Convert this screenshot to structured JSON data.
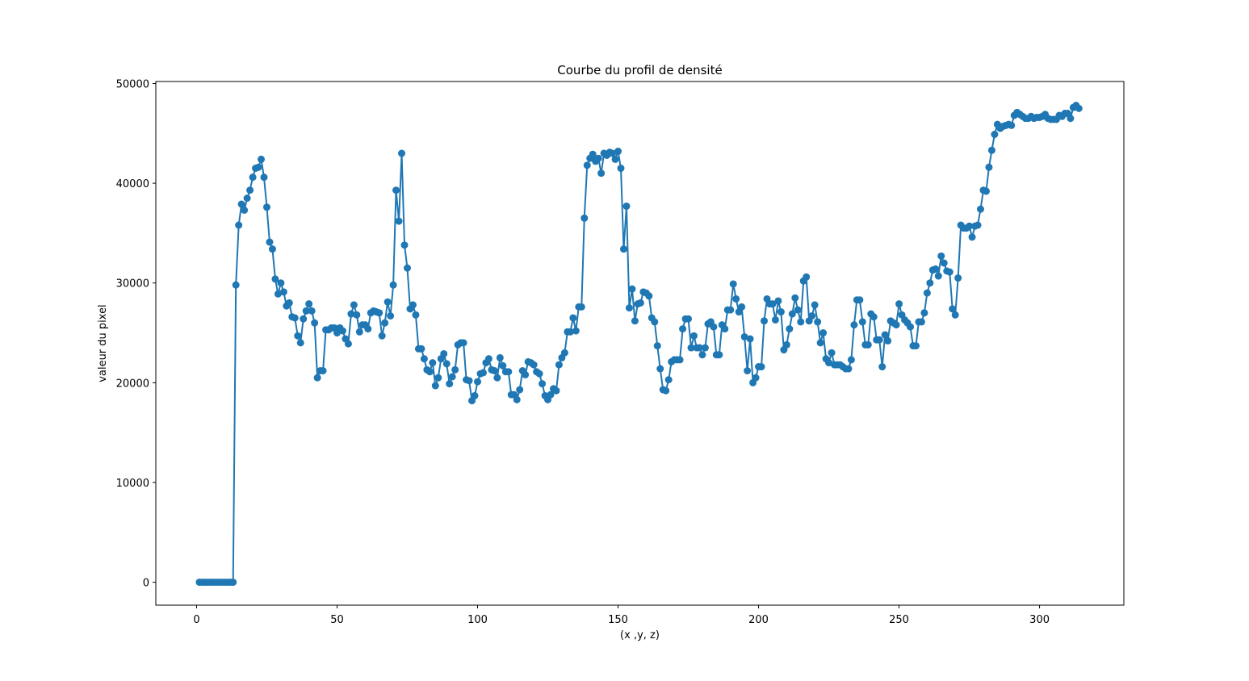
{
  "chart_data": {
    "type": "line",
    "title": "Courbe du profil de densité",
    "xlabel": "(x ,y, z)",
    "ylabel": "valeur du pixel",
    "xlim": [
      -14.5,
      330
    ],
    "ylim": [
      -2300,
      50200
    ],
    "xticks": [
      0,
      50,
      100,
      150,
      200,
      250,
      300
    ],
    "yticks": [
      0,
      10000,
      20000,
      30000,
      40000,
      50000
    ],
    "grid": false,
    "markers": "circle",
    "series": [
      {
        "color": "#1f77b4",
        "x": [
          1,
          2,
          3,
          4,
          5,
          6,
          7,
          8,
          9,
          10,
          11,
          12,
          13,
          14,
          15,
          16,
          17,
          18,
          19,
          20,
          21,
          22,
          23,
          24,
          25,
          26,
          27,
          28,
          29,
          30,
          31,
          32,
          33,
          34,
          35,
          36,
          37,
          38,
          39,
          40,
          41,
          42,
          43,
          44,
          45,
          46,
          47,
          48,
          49,
          50,
          51,
          52,
          53,
          54,
          55,
          56,
          57,
          58,
          59,
          60,
          61,
          62,
          63,
          64,
          65,
          66,
          67,
          68,
          69,
          70,
          71,
          72,
          73,
          74,
          75,
          76,
          77,
          78,
          79,
          80,
          81,
          82,
          83,
          84,
          85,
          86,
          87,
          88,
          89,
          90,
          91,
          92,
          93,
          94,
          95,
          96,
          97,
          98,
          99,
          100,
          101,
          102,
          103,
          104,
          105,
          106,
          107,
          108,
          109,
          110,
          111,
          112,
          113,
          114,
          115,
          116,
          117,
          118,
          119,
          120,
          121,
          122,
          123,
          124,
          125,
          126,
          127,
          128,
          129,
          130,
          131,
          132,
          133,
          134,
          135,
          136,
          137,
          138,
          139,
          140,
          141,
          142,
          143,
          144,
          145,
          146,
          147,
          148,
          149,
          150,
          151,
          152,
          153,
          154,
          155,
          156,
          157,
          158,
          159,
          160,
          161,
          162,
          163,
          164,
          165,
          166,
          167,
          168,
          169,
          170,
          171,
          172,
          173,
          174,
          175,
          176,
          177,
          178,
          179,
          180,
          181,
          182,
          183,
          184,
          185,
          186,
          187,
          188,
          189,
          190,
          191,
          192,
          193,
          194,
          195,
          196,
          197,
          198,
          199,
          200,
          201,
          202,
          203,
          204,
          205,
          206,
          207,
          208,
          209,
          210,
          211,
          212,
          213,
          214,
          215,
          216,
          217,
          218,
          219,
          220,
          221,
          222,
          223,
          224,
          225,
          226,
          227,
          228,
          229,
          230,
          231,
          232,
          233,
          234,
          235,
          236,
          237,
          238,
          239,
          240,
          241,
          242,
          243,
          244,
          245,
          246,
          247,
          248,
          249,
          250,
          251,
          252,
          253,
          254,
          255,
          256,
          257,
          258,
          259,
          260,
          261,
          262,
          263,
          264,
          265,
          266,
          267,
          268,
          269,
          270,
          271,
          272,
          273,
          274,
          275,
          276,
          277,
          278,
          279,
          280,
          281,
          282,
          283,
          284,
          285,
          286,
          287,
          288,
          289,
          290,
          291,
          292,
          293,
          294,
          295,
          296,
          297,
          298,
          299,
          300,
          301,
          302,
          303,
          304,
          305,
          306,
          307,
          308,
          309,
          310,
          311,
          312,
          313,
          314
        ],
        "y": [
          0,
          0,
          0,
          0,
          0,
          0,
          0,
          0,
          0,
          0,
          0,
          0,
          0,
          29800,
          35800,
          37900,
          37300,
          38500,
          39300,
          40600,
          41500,
          41600,
          42400,
          40600,
          37600,
          34100,
          33400,
          30400,
          28900,
          30000,
          29100,
          27700,
          28000,
          26600,
          26500,
          24700,
          24000,
          26400,
          27200,
          27900,
          27200,
          26000,
          20500,
          21200,
          21200,
          25300,
          25300,
          25500,
          25500,
          25000,
          25500,
          25200,
          24400,
          23900,
          26900,
          27800,
          26800,
          25100,
          25800,
          25800,
          25400,
          27000,
          27200,
          27100,
          27000,
          24700,
          26000,
          28100,
          26700,
          29800,
          39300,
          36200,
          43000,
          33800,
          31500,
          27400,
          27800,
          26800,
          23400,
          23400,
          22400,
          21300,
          21100,
          22000,
          19700,
          20500,
          22400,
          22900,
          21900,
          19900,
          20600,
          21300,
          23800,
          24000,
          24000,
          20300,
          20200,
          18200,
          18700,
          20100,
          20900,
          21000,
          22000,
          22400,
          21300,
          21200,
          20500,
          22500,
          21700,
          21100,
          21100,
          18800,
          18800,
          18300,
          19300,
          21200,
          20800,
          22100,
          22000,
          21800,
          21100,
          20900,
          19900,
          18700,
          18300,
          18800,
          19400,
          19200,
          21800,
          22500,
          23000,
          25100,
          25100,
          26500,
          25200,
          27600,
          27600,
          36500,
          41800,
          42500,
          42900,
          42200,
          42500,
          41000,
          43000,
          42800,
          43100,
          43000,
          42400,
          43200,
          41500,
          33400,
          37700,
          27500,
          29400,
          26200,
          27900,
          28000,
          29100,
          29000,
          28700,
          26500,
          26100,
          23700,
          21400,
          19300,
          19200,
          20300,
          22100,
          22300,
          22300,
          22300,
          25400,
          26400,
          26400,
          23500,
          24700,
          23500,
          23500,
          22800,
          23500,
          25900,
          26100,
          25600,
          22800,
          22800,
          25800,
          25400,
          27300,
          27300,
          29900,
          28400,
          27100,
          27600,
          24600,
          21200,
          24400,
          20000,
          20500,
          21600,
          21600,
          26200,
          28400,
          27900,
          27900,
          26300,
          28200,
          27100,
          23300,
          23800,
          25400,
          26900,
          28500,
          27300,
          26100,
          30200,
          30600,
          26200,
          26700,
          27800,
          26100,
          24000,
          25000,
          22400,
          22000,
          23000,
          21800,
          21800,
          21800,
          21600,
          21400,
          21400,
          22300,
          25800,
          28300,
          28300,
          26100,
          23800,
          23800,
          26900,
          26600,
          24300,
          24300,
          21600,
          24800,
          24200,
          26200,
          26000,
          25800,
          27900,
          26800,
          26300,
          26000,
          25600,
          23700,
          23700,
          26100,
          26100,
          27000,
          29000,
          30000,
          31300,
          31400,
          30700,
          32700,
          32000,
          31200,
          31100,
          27400,
          26800,
          30500,
          35800,
          35500,
          35500,
          35700,
          34600,
          35700,
          35800,
          37400,
          39300,
          39200,
          41600,
          43300,
          44900,
          45900,
          45500,
          45700,
          45800,
          45900,
          45800,
          46800,
          47100,
          46900,
          46700,
          46500,
          46500,
          46700,
          46500,
          46600,
          46600,
          46700,
          46900,
          46500,
          46400,
          46400,
          46400,
          46800,
          46700,
          47000,
          47000,
          46500,
          47600,
          47800,
          47500
        ]
      }
    ]
  }
}
